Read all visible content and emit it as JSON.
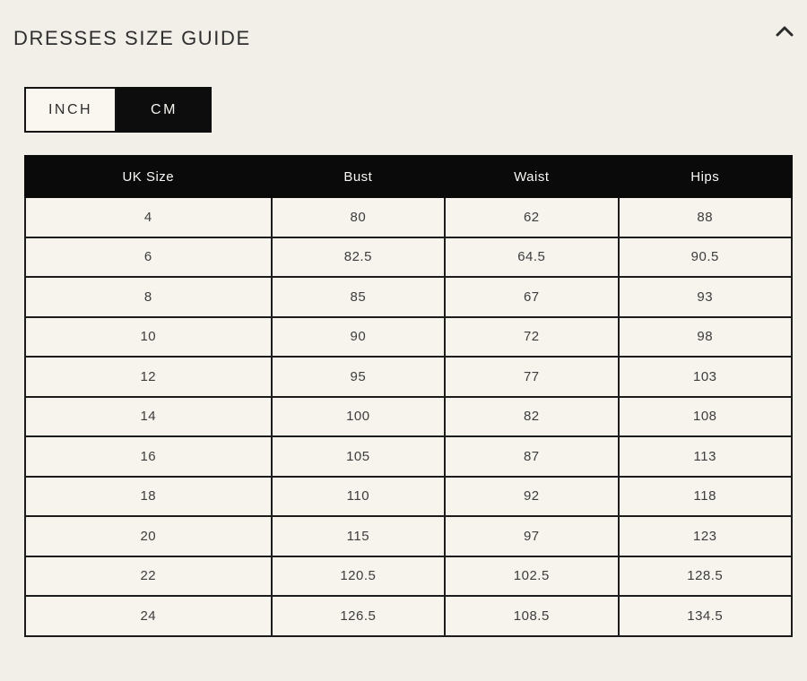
{
  "page": {
    "title": "DRESSES SIZE GUIDE"
  },
  "header": {
    "collapse_icon": "chevron-up-icon"
  },
  "toggle": {
    "options": [
      {
        "label": "INCH",
        "selected": false
      },
      {
        "label": "CM",
        "selected": true
      }
    ],
    "selected_unit": "CM"
  },
  "table": {
    "columns": [
      "UK Size",
      "Bust",
      "Waist",
      "Hips"
    ],
    "rows": [
      [
        "4",
        "80",
        "62",
        "88"
      ],
      [
        "6",
        "82.5",
        "64.5",
        "90.5"
      ],
      [
        "8",
        "85",
        "67",
        "93"
      ],
      [
        "10",
        "90",
        "72",
        "98"
      ],
      [
        "12",
        "95",
        "77",
        "103"
      ],
      [
        "14",
        "100",
        "82",
        "108"
      ],
      [
        "16",
        "105",
        "87",
        "113"
      ],
      [
        "18",
        "110",
        "92",
        "118"
      ],
      [
        "20",
        "115",
        "97",
        "123"
      ],
      [
        "22",
        "120.5",
        "102.5",
        "128.5"
      ],
      [
        "24",
        "126.5",
        "108.5",
        "134.5"
      ]
    ]
  },
  "colors": {
    "page_background": "#f2efe9",
    "cell_background": "#f7f4ee",
    "accent_black": "#0d0d0d",
    "table_border": "#1c1c1c",
    "text": "#3d3d3d"
  }
}
